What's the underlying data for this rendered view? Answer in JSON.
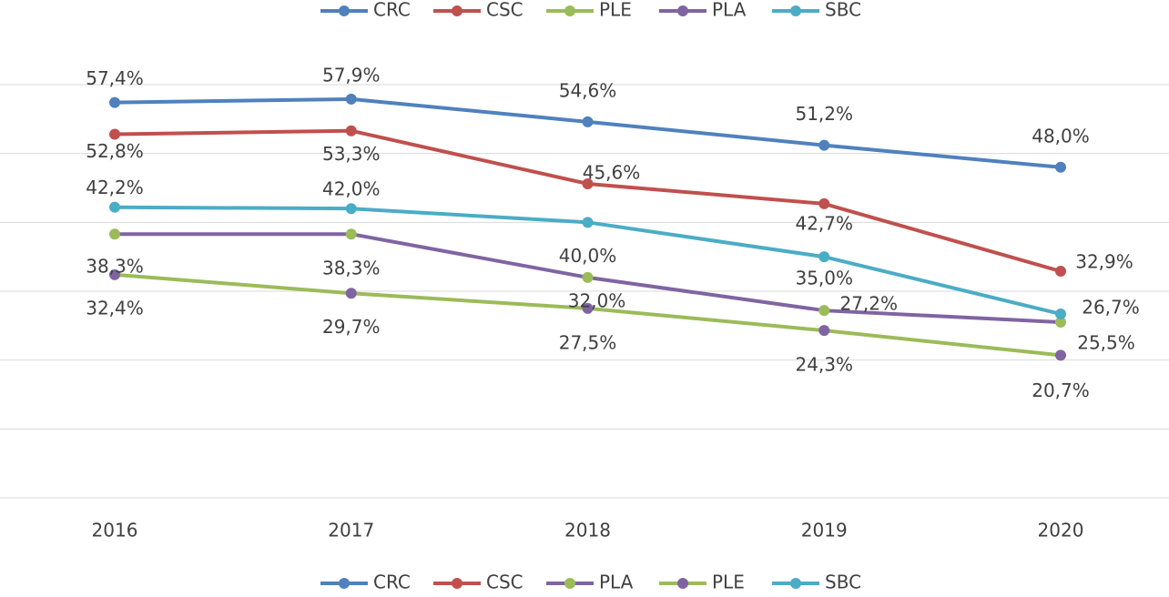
{
  "chart_data": {
    "type": "line",
    "categories": [
      "2016",
      "2017",
      "2018",
      "2019",
      "2020"
    ],
    "ylim": [
      0,
      60
    ],
    "yticks": [
      0,
      10,
      20,
      30,
      40,
      50,
      60
    ],
    "grid": true,
    "series": [
      {
        "name": "CRC",
        "color": "#4f81bd",
        "marker_color": "#4f81bd",
        "values": [
          57.4,
          57.9,
          54.6,
          51.2,
          48.0
        ],
        "value_labels": [
          "57,4%",
          "57,9%",
          "54,6%",
          "51,2%",
          "48,0%"
        ]
      },
      {
        "name": "CSC",
        "color": "#c0504d",
        "marker_color": "#c0504d",
        "values": [
          52.8,
          53.3,
          45.6,
          42.7,
          32.9
        ],
        "value_labels": [
          "52,8%",
          "53,3%",
          "45,6%",
          "42,7%",
          "32,9%"
        ]
      },
      {
        "name": "PLA",
        "color": "#8064a2",
        "marker_color": "#9bbb59",
        "values": [
          38.3,
          38.3,
          32.0,
          27.2,
          25.5
        ],
        "value_labels": [
          "38,3%",
          "38,3%",
          "32,0%",
          "27,2%",
          "25,5%"
        ]
      },
      {
        "name": "PLE",
        "color": "#9bbb59",
        "marker_color": "#8064a2",
        "values": [
          32.4,
          29.7,
          27.5,
          24.3,
          20.7
        ],
        "value_labels": [
          "32,4%",
          "29,7%",
          "27,5%",
          "24,3%",
          "20,7%"
        ]
      },
      {
        "name": "SBC",
        "color": "#4bacc6",
        "marker_color": "#4bacc6",
        "values": [
          42.2,
          42.0,
          40.0,
          35.0,
          26.7
        ],
        "value_labels": [
          "42,2%",
          "42,0%",
          "40,0%",
          "35,0%",
          "26,7%"
        ]
      }
    ],
    "legend_top": [
      {
        "name": "CRC",
        "color": "#4f81bd"
      },
      {
        "name": "CSC",
        "color": "#c0504d"
      },
      {
        "name": "PLE",
        "color": "#9bbb59"
      },
      {
        "name": "PLA",
        "color": "#8064a2"
      },
      {
        "name": "SBC",
        "color": "#4bacc6"
      }
    ]
  }
}
